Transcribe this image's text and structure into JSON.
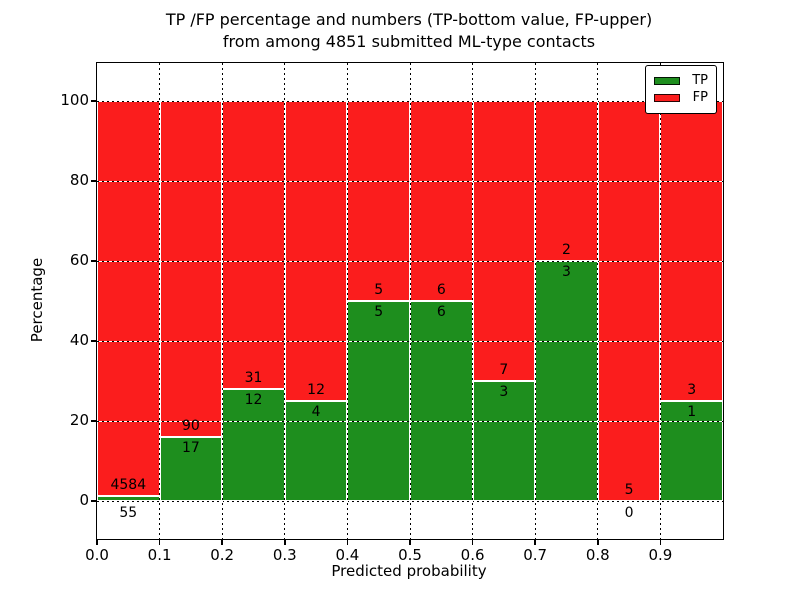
{
  "title": {
    "line1": "TP /FP percentage and numbers (TP-bottom value, FP-upper)",
    "line2": "from among 4851 submitted ML-type contacts"
  },
  "chart_data": {
    "type": "bar",
    "stacked": true,
    "title": "TP /FP percentage and numbers (TP-bottom value, FP-upper) from among 4851 submitted ML-type contacts",
    "xlabel": "Predicted probability",
    "ylabel": "Percentage",
    "bin_edges": [
      0.0,
      0.1,
      0.2,
      0.3,
      0.4,
      0.5,
      0.6,
      0.7,
      0.8,
      0.9,
      1.0
    ],
    "categories": [
      "0.0-0.1",
      "0.1-0.2",
      "0.2-0.3",
      "0.3-0.4",
      "0.4-0.5",
      "0.5-0.6",
      "0.6-0.7",
      "0.7-0.8",
      "0.8-0.9",
      "0.9-1.0"
    ],
    "series": [
      {
        "name": "TP",
        "values": [
          55,
          17,
          12,
          4,
          5,
          6,
          3,
          3,
          0,
          1
        ]
      },
      {
        "name": "FP",
        "values": [
          4584,
          90,
          31,
          12,
          5,
          6,
          7,
          2,
          5,
          3
        ]
      }
    ],
    "tp_percent": [
      1.19,
      15.89,
      27.91,
      25,
      50,
      50,
      30,
      60,
      0,
      25
    ],
    "xticks": [
      "0.0",
      "0.1",
      "0.2",
      "0.3",
      "0.4",
      "0.5",
      "0.6",
      "0.7",
      "0.8",
      "0.9"
    ],
    "yticks": [
      0,
      20,
      40,
      60,
      80,
      100
    ],
    "ylim": [
      -9.5,
      109.5
    ],
    "xlim": [
      0.0,
      1.0
    ],
    "grid": "dotted",
    "legend_position": "upper right",
    "colors": {
      "tp": "#1e8e1e",
      "fp": "#fb1d1d"
    },
    "legend": [
      {
        "label": "TP",
        "color_key": "tp"
      },
      {
        "label": "FP",
        "color_key": "fp"
      }
    ]
  }
}
